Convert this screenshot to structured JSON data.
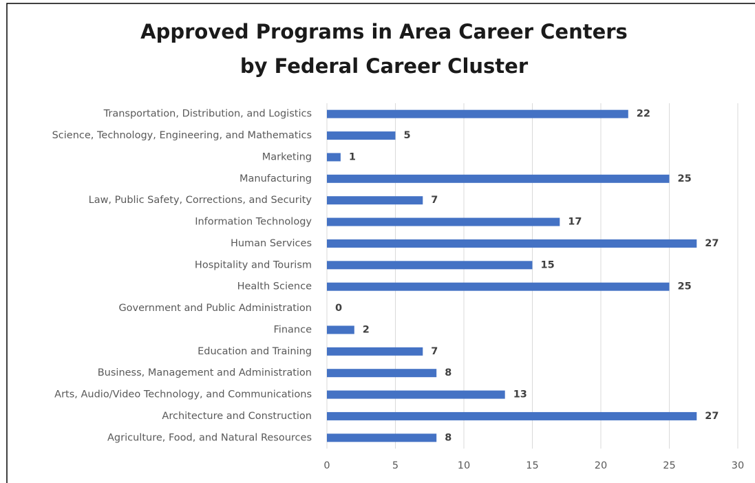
{
  "chart_data": {
    "type": "bar",
    "orientation": "horizontal",
    "title": [
      "Approved Programs in Area Career Centers",
      "by Federal Career Cluster"
    ],
    "categories": [
      "Transportation, Distribution, and Logistics",
      "Science, Technology, Engineering, and Mathematics",
      "Marketing",
      "Manufacturing",
      "Law, Public Safety, Corrections, and Security",
      "Information Technology",
      "Human Services",
      "Hospitality and Tourism",
      "Health Science",
      "Government and Public Administration",
      "Finance",
      "Education and Training",
      "Business, Management and Administration",
      "Arts, Audio/Video Technology, and Communications",
      "Architecture and Construction",
      "Agriculture, Food, and Natural Resources"
    ],
    "values": [
      22,
      5,
      1,
      25,
      7,
      17,
      27,
      15,
      25,
      0,
      2,
      7,
      8,
      13,
      27,
      8
    ],
    "color": "#4472c4",
    "xlim": [
      0,
      30
    ],
    "xticks": [
      0,
      5,
      10,
      15,
      20,
      25,
      30
    ],
    "grid": true
  }
}
